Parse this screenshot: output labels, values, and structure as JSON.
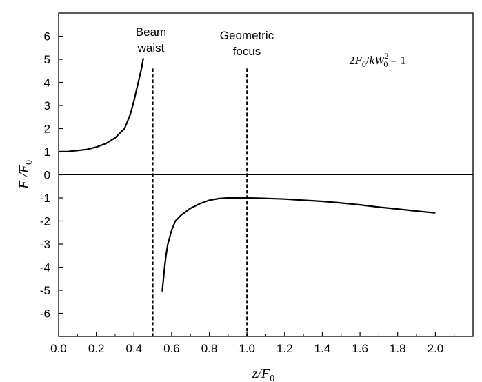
{
  "chart_data": {
    "type": "line",
    "title": "",
    "xlabel": "z/F",
    "xlabel_sub": "0",
    "ylabel": "F /F",
    "ylabel_sub": "0",
    "xlim": [
      0.0,
      2.2
    ],
    "ylim": [
      -7.0,
      7.0
    ],
    "x_ticks": [
      0.0,
      0.2,
      0.4,
      0.6,
      0.8,
      1.0,
      1.2,
      1.4,
      1.6,
      1.8,
      2.0
    ],
    "x_tick_labels": [
      "0.0",
      "0.2",
      "0.4",
      "0.6",
      "0.8",
      "1.0",
      "1.2",
      "1.4",
      "1.6",
      "1.8",
      "2.0"
    ],
    "y_ticks": [
      6,
      5,
      4,
      3,
      2,
      1,
      0,
      -1,
      -2,
      -3,
      -4,
      -5,
      -6
    ],
    "y_tick_labels": [
      "6",
      "5",
      "4",
      "3",
      "2",
      "1",
      "0",
      "-1",
      "-2",
      "-3",
      "-4",
      "-5",
      "-6"
    ],
    "grid": false,
    "zero_line": true,
    "series": [
      {
        "segment": "before-waist",
        "x": [
          0.0,
          0.05,
          0.1,
          0.15,
          0.2,
          0.25,
          0.3,
          0.35,
          0.38,
          0.4,
          0.42,
          0.44,
          0.45
        ],
        "y": [
          1.0,
          1.01,
          1.05,
          1.1,
          1.2,
          1.35,
          1.6,
          2.0,
          2.6,
          3.2,
          3.9,
          4.6,
          5.05
        ]
      },
      {
        "segment": "after-waist",
        "x": [
          0.55,
          0.56,
          0.57,
          0.58,
          0.6,
          0.62,
          0.65,
          0.7,
          0.75,
          0.8,
          0.85,
          0.9,
          0.95,
          1.0,
          1.1,
          1.2,
          1.3,
          1.4,
          1.5,
          1.6,
          1.7,
          1.8,
          1.9,
          2.0
        ],
        "y": [
          -5.05,
          -4.2,
          -3.5,
          -3.0,
          -2.4,
          -2.0,
          -1.75,
          -1.45,
          -1.25,
          -1.1,
          -1.03,
          -1.0,
          -1.0,
          -1.0,
          -1.02,
          -1.05,
          -1.1,
          -1.15,
          -1.22,
          -1.3,
          -1.4,
          -1.48,
          -1.57,
          -1.65
        ]
      }
    ],
    "vertical_markers": [
      {
        "x": 0.5,
        "y_top": 4.6,
        "line1": "Beam",
        "line2": "waist"
      },
      {
        "x": 1.0,
        "y_top": 4.6,
        "line1": "Geometric",
        "line2": "focus"
      }
    ],
    "annotation": {
      "text_2": "2",
      "text_F": "F",
      "text_sub0": "0",
      "text_slash": "/",
      "text_k": "k",
      "text_W": "W",
      "text_sup2": "2",
      "text_eq": " = 1"
    }
  }
}
